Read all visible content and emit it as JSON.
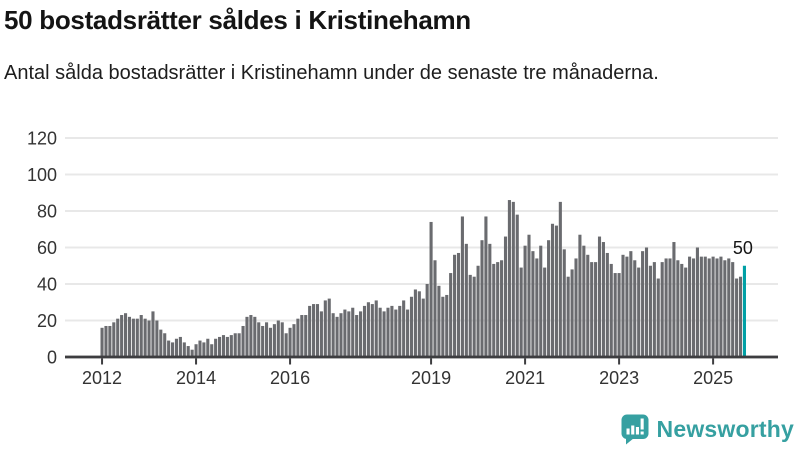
{
  "header": {
    "title": "50 bostadsrätter såldes i Kristinehamn",
    "subtitle": "Antal sålda bostadsrätter i Kristinehamn under de senaste tre månaderna."
  },
  "chart_data": {
    "type": "bar",
    "title": "50 bostadsrätter såldes i Kristinehamn",
    "subtitle": "Antal sålda bostadsrätter i Kristinehamn under de senaste tre månaderna.",
    "x_unit": "month",
    "x_start_year": 2012,
    "values": [
      16,
      17,
      17,
      19,
      21,
      23,
      24,
      22,
      21,
      21,
      23,
      21,
      20,
      25,
      20,
      15,
      13,
      9,
      8,
      10,
      11,
      8,
      6,
      4,
      7,
      9,
      8,
      10,
      7,
      10,
      11,
      12,
      11,
      12,
      13,
      13,
      17,
      22,
      23,
      22,
      19,
      17,
      19,
      16,
      18,
      20,
      19,
      13,
      16,
      18,
      21,
      23,
      23,
      28,
      29,
      29,
      25,
      31,
      32,
      24,
      22,
      24,
      26,
      25,
      27,
      23,
      25,
      28,
      30,
      29,
      31,
      27,
      25,
      27,
      28,
      26,
      28,
      31,
      26,
      33,
      37,
      36,
      32,
      40,
      74,
      53,
      39,
      33,
      34,
      46,
      56,
      57,
      77,
      62,
      45,
      44,
      50,
      64,
      77,
      62,
      51,
      52,
      53,
      66,
      86,
      85,
      78,
      49,
      61,
      67,
      58,
      54,
      61,
      49,
      64,
      73,
      72,
      85,
      59,
      44,
      48,
      54,
      67,
      61,
      56,
      52,
      52,
      66,
      63,
      57,
      51,
      46,
      46,
      56,
      55,
      58,
      53,
      49,
      58,
      60,
      50,
      52,
      43,
      52,
      54,
      54,
      63,
      53,
      51,
      49,
      55,
      54,
      60,
      55,
      55,
      54,
      55,
      54,
      55,
      53,
      54,
      52,
      43,
      44,
      50
    ],
    "highlight": {
      "index": 164,
      "label": "50",
      "value": 50
    },
    "ylim": [
      0,
      120
    ],
    "yticks": [
      0,
      20,
      40,
      60,
      80,
      100,
      120
    ],
    "year_ticks": [
      "2012",
      "2014",
      "2016",
      "2019",
      "2021",
      "2023",
      "2025"
    ],
    "grid": true,
    "legend": "none",
    "colors": {
      "bar": "#6a6b6f",
      "highlight": "#00a0a5",
      "grid": "#e8e8e8",
      "axis": "#3d3d40",
      "tick_text": "#333333",
      "annotation_text": "#141414"
    }
  },
  "footer": {
    "brand": "Newsworthy",
    "brand_color": "#36a0a1"
  }
}
